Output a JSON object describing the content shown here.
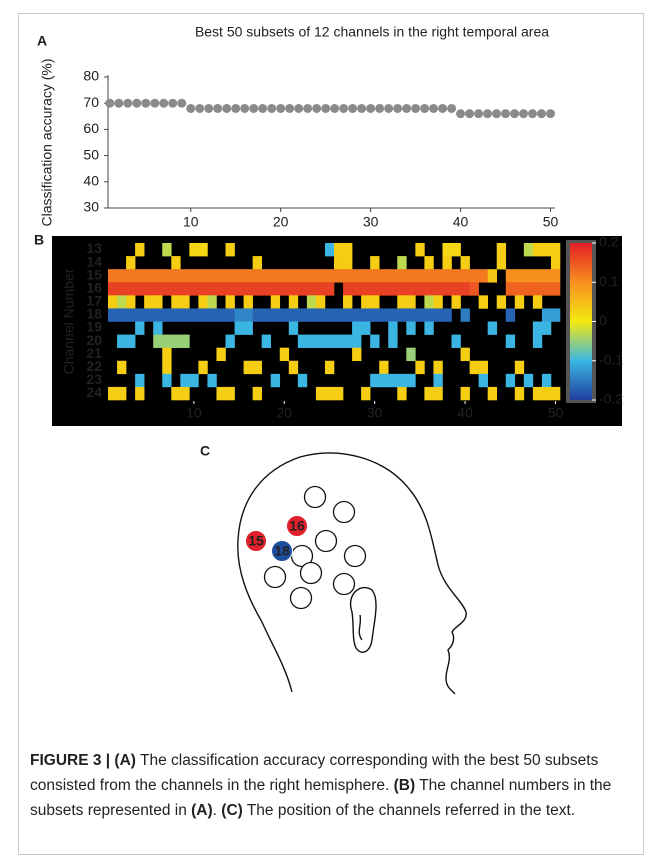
{
  "chart_data": [
    {
      "type": "scatter",
      "panel_label": "A",
      "title": "Best 50 subsets of 12 channels in the right temporal area",
      "y_label": "Classification accuracy (%)",
      "color": "#8a8a8a",
      "x": [
        1,
        2,
        3,
        4,
        5,
        6,
        7,
        8,
        9,
        10,
        11,
        12,
        13,
        14,
        15,
        16,
        17,
        18,
        19,
        20,
        21,
        22,
        23,
        24,
        25,
        26,
        27,
        28,
        29,
        30,
        31,
        32,
        33,
        34,
        35,
        36,
        37,
        38,
        39,
        40,
        41,
        42,
        43,
        44,
        45,
        46,
        47,
        48,
        49,
        50
      ],
      "values": [
        70,
        70,
        70,
        70,
        70,
        70,
        70,
        70,
        70,
        68,
        68,
        68,
        68,
        68,
        68,
        68,
        68,
        68,
        68,
        68,
        68,
        68,
        68,
        68,
        68,
        68,
        68,
        68,
        68,
        68,
        68,
        68,
        68,
        68,
        68,
        68,
        68,
        68,
        68,
        66,
        66,
        66,
        66,
        66,
        66,
        66,
        66,
        66,
        66,
        66
      ],
      "xlim": [
        0.8,
        50.5
      ],
      "xticks": [
        10,
        20,
        30,
        40,
        50
      ],
      "ylim": [
        30,
        80
      ],
      "yticks": [
        30,
        40,
        50,
        60,
        70,
        80
      ]
    },
    {
      "type": "heatmap",
      "panel_label": "B",
      "y_label": "Channel Number",
      "categories": [
        "13",
        "14",
        "15",
        "16",
        "17",
        "18",
        "19",
        "20",
        "21",
        "22",
        "23",
        "24"
      ],
      "xlim": [
        0.5,
        50.5
      ],
      "xticks": [
        10,
        20,
        30,
        40,
        50
      ],
      "colorbar": {
        "lim": [
          -0.2,
          0.2
        ],
        "ticks": [
          0.2,
          0.1,
          0,
          -0.1,
          -0.2
        ],
        "colormap": [
          "#1f3f9e",
          "#3bb6e3",
          "#f4e910",
          "#f7901e",
          "#e31f26"
        ]
      },
      "values": [
        [
          null,
          null,
          null,
          0.03,
          null,
          null,
          -0.03,
          null,
          null,
          0.02,
          0.02,
          null,
          null,
          0.03,
          null,
          null,
          null,
          null,
          null,
          null,
          null,
          null,
          null,
          null,
          -0.1,
          0.03,
          0.03,
          null,
          null,
          null,
          null,
          null,
          null,
          null,
          0.03,
          null,
          null,
          0.02,
          0.02,
          null,
          null,
          null,
          null,
          0.03,
          null,
          null,
          -0.03,
          0.03,
          0.03,
          0.03
        ],
        [
          null,
          null,
          0.03,
          null,
          null,
          null,
          null,
          0.03,
          null,
          null,
          null,
          null,
          null,
          null,
          null,
          null,
          0.03,
          null,
          null,
          null,
          null,
          null,
          null,
          null,
          null,
          0.03,
          0.03,
          null,
          null,
          0.03,
          null,
          null,
          -0.03,
          null,
          null,
          0.03,
          null,
          0.03,
          null,
          0.03,
          null,
          null,
          null,
          0.03,
          null,
          null,
          null,
          null,
          null,
          0.03
        ],
        [
          0.12,
          0.12,
          0.12,
          0.12,
          0.12,
          0.12,
          0.12,
          0.12,
          0.12,
          0.12,
          0.12,
          0.12,
          0.12,
          0.12,
          0.12,
          0.12,
          0.12,
          0.12,
          0.12,
          0.12,
          0.12,
          0.12,
          0.12,
          0.12,
          0.12,
          0.12,
          0.12,
          0.12,
          0.12,
          0.12,
          0.12,
          0.12,
          0.12,
          0.12,
          0.12,
          0.12,
          0.12,
          0.12,
          0.12,
          0.12,
          0.12,
          0.12,
          0.04,
          null,
          0.1,
          0.1,
          0.1,
          0.1,
          0.1,
          0.1
        ],
        [
          0.17,
          0.17,
          0.17,
          0.17,
          0.17,
          0.17,
          0.17,
          0.17,
          0.17,
          0.17,
          0.17,
          0.17,
          0.17,
          0.17,
          0.17,
          0.17,
          0.17,
          0.17,
          0.17,
          0.17,
          0.17,
          0.17,
          0.17,
          0.17,
          0.17,
          null,
          0.17,
          0.17,
          0.17,
          0.17,
          0.17,
          0.17,
          0.17,
          0.17,
          0.17,
          0.17,
          0.17,
          0.17,
          0.17,
          0.17,
          0.15,
          null,
          null,
          null,
          0.14,
          0.14,
          0.14,
          0.14,
          0.14,
          0.14
        ],
        [
          0.03,
          -0.03,
          0.03,
          null,
          0.03,
          0.03,
          null,
          0.03,
          0.03,
          null,
          0.03,
          -0.03,
          null,
          0.03,
          null,
          0.03,
          null,
          null,
          0.03,
          null,
          0.03,
          null,
          -0.03,
          0.03,
          null,
          null,
          0.03,
          null,
          0.03,
          0.03,
          null,
          null,
          0.03,
          0.03,
          null,
          -0.03,
          0.03,
          null,
          0.03,
          null,
          null,
          0.03,
          null,
          0.03,
          null,
          0.03,
          null,
          0.03,
          null,
          null
        ],
        [
          -0.17,
          -0.17,
          -0.17,
          -0.17,
          -0.17,
          -0.17,
          -0.17,
          -0.17,
          -0.17,
          -0.17,
          -0.17,
          -0.17,
          -0.17,
          -0.17,
          -0.14,
          -0.14,
          -0.17,
          -0.17,
          -0.17,
          -0.17,
          -0.17,
          -0.17,
          -0.17,
          -0.17,
          -0.17,
          -0.17,
          -0.17,
          -0.17,
          -0.17,
          -0.17,
          -0.17,
          -0.17,
          -0.17,
          -0.17,
          -0.17,
          -0.17,
          -0.17,
          -0.17,
          null,
          -0.15,
          null,
          null,
          null,
          null,
          -0.17,
          null,
          null,
          null,
          -0.12,
          -0.12
        ],
        [
          null,
          null,
          null,
          -0.1,
          null,
          -0.1,
          null,
          null,
          null,
          null,
          null,
          null,
          null,
          null,
          -0.1,
          -0.1,
          null,
          null,
          null,
          null,
          -0.1,
          null,
          null,
          null,
          null,
          null,
          null,
          -0.1,
          -0.1,
          null,
          null,
          -0.1,
          null,
          -0.1,
          null,
          -0.1,
          null,
          null,
          null,
          null,
          null,
          null,
          -0.1,
          null,
          null,
          null,
          null,
          -0.1,
          -0.1,
          null
        ],
        [
          null,
          -0.1,
          -0.1,
          null,
          null,
          -0.05,
          -0.05,
          -0.05,
          -0.05,
          null,
          null,
          null,
          null,
          -0.1,
          null,
          null,
          null,
          -0.1,
          null,
          null,
          null,
          -0.1,
          -0.1,
          -0.1,
          -0.1,
          -0.1,
          -0.1,
          -0.1,
          null,
          -0.1,
          null,
          -0.1,
          null,
          null,
          null,
          null,
          null,
          null,
          -0.1,
          null,
          null,
          null,
          null,
          null,
          -0.1,
          null,
          null,
          -0.1,
          null,
          null
        ],
        [
          null,
          null,
          null,
          null,
          null,
          null,
          0.03,
          null,
          null,
          null,
          null,
          null,
          0.03,
          null,
          null,
          null,
          null,
          null,
          null,
          0.03,
          null,
          null,
          null,
          null,
          null,
          null,
          null,
          0.03,
          null,
          null,
          null,
          null,
          null,
          -0.05,
          null,
          null,
          null,
          null,
          null,
          0.03,
          null,
          null,
          null,
          null,
          null,
          null,
          null,
          null,
          null,
          null
        ],
        [
          null,
          0.03,
          null,
          null,
          null,
          null,
          0.03,
          null,
          null,
          null,
          0.03,
          null,
          null,
          null,
          null,
          0.03,
          0.03,
          null,
          null,
          null,
          0.03,
          null,
          null,
          null,
          0.03,
          null,
          null,
          null,
          null,
          null,
          0.03,
          null,
          null,
          null,
          0.03,
          null,
          0.03,
          null,
          null,
          null,
          0.03,
          0.03,
          null,
          null,
          null,
          0.03,
          null,
          null,
          null,
          null
        ],
        [
          null,
          null,
          null,
          -0.1,
          null,
          null,
          -0.1,
          null,
          -0.1,
          -0.1,
          null,
          -0.1,
          null,
          null,
          null,
          null,
          null,
          null,
          -0.1,
          null,
          null,
          -0.1,
          null,
          null,
          null,
          null,
          null,
          null,
          null,
          -0.1,
          -0.1,
          -0.1,
          -0.1,
          -0.1,
          null,
          null,
          -0.1,
          null,
          null,
          null,
          null,
          -0.1,
          null,
          null,
          -0.1,
          null,
          -0.1,
          null,
          -0.1,
          null
        ],
        [
          0.03,
          0.03,
          null,
          0.03,
          null,
          null,
          null,
          0.03,
          0.03,
          null,
          null,
          null,
          0.03,
          0.03,
          null,
          null,
          0.03,
          null,
          null,
          null,
          null,
          null,
          null,
          0.03,
          0.03,
          0.03,
          null,
          null,
          0.03,
          null,
          null,
          null,
          0.03,
          null,
          null,
          0.03,
          0.03,
          null,
          null,
          0.03,
          null,
          null,
          0.03,
          null,
          null,
          0.03,
          null,
          0.03,
          0.03,
          0.03
        ]
      ]
    }
  ],
  "diagram": {
    "panel_label": "C",
    "electrodes": [
      {
        "label": "15",
        "color": "#e0202a"
      },
      {
        "label": "16",
        "color": "#e0202a"
      },
      {
        "label": "18",
        "color": "#1e4ea0"
      }
    ]
  },
  "caption": {
    "segments": [
      {
        "text": "FIGURE 3 | (A)",
        "bold": true
      },
      {
        "text": " The classification accuracy corresponding with the best 50 subsets consisted from the channels in the right hemisphere. ",
        "bold": false
      },
      {
        "text": "(B)",
        "bold": true
      },
      {
        "text": " The channel numbers in the subsets represented in ",
        "bold": false
      },
      {
        "text": "(A)",
        "bold": true
      },
      {
        "text": ". ",
        "bold": false
      },
      {
        "text": "(C)",
        "bold": true
      },
      {
        "text": " The position of the channels referred in the text.",
        "bold": false
      }
    ]
  }
}
